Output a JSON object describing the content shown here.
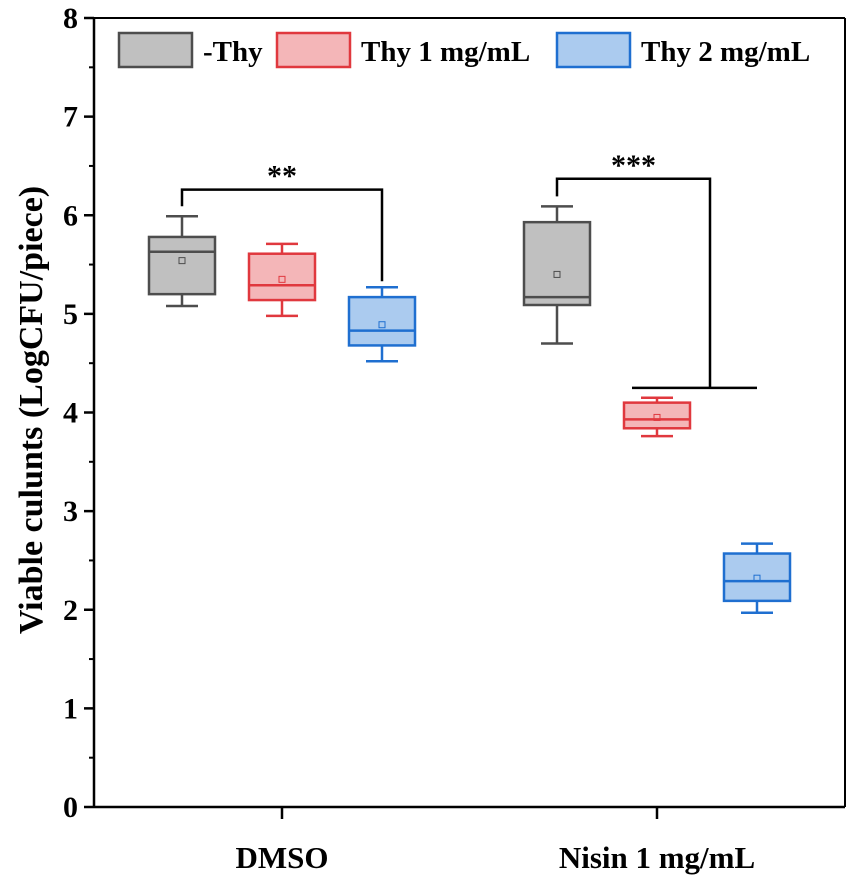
{
  "chart_data": {
    "type": "box",
    "title": "",
    "xlabel": "",
    "ylabel": "Viable culunts (LogCFU/piece)",
    "ylim": [
      0,
      8
    ],
    "yticks": [
      "0",
      "1",
      "2",
      "3",
      "4",
      "5",
      "6",
      "7",
      "8"
    ],
    "categories": [
      "DMSO",
      "Nisin 1 mg/mL"
    ],
    "series": [
      {
        "name": "-Thy",
        "fill": "#c0c0c0",
        "stroke": "#4d4d4d",
        "boxes": [
          {
            "min": 5.08,
            "q1": 5.2,
            "median": 5.63,
            "q3": 5.78,
            "max": 5.99,
            "mean": 5.54
          },
          {
            "min": 4.7,
            "q1": 5.09,
            "median": 5.17,
            "q3": 5.93,
            "max": 6.09,
            "mean": 5.4
          }
        ]
      },
      {
        "name": "Thy 1 mg/mL",
        "fill": "#f4b6b8",
        "stroke": "#e0383e",
        "boxes": [
          {
            "min": 4.98,
            "q1": 5.14,
            "median": 5.29,
            "q3": 5.61,
            "max": 5.71,
            "mean": 5.35
          },
          {
            "min": 3.76,
            "q1": 3.84,
            "median": 3.93,
            "q3": 4.1,
            "max": 4.15,
            "mean": 3.95
          }
        ]
      },
      {
        "name": "Thy 2 mg/mL",
        "fill": "#abcbef",
        "stroke": "#1f6fd0",
        "boxes": [
          {
            "min": 4.52,
            "q1": 4.68,
            "median": 4.83,
            "q3": 5.17,
            "max": 5.27,
            "mean": 4.89
          },
          {
            "min": 1.97,
            "q1": 2.09,
            "median": 2.29,
            "q3": 2.57,
            "max": 2.67,
            "mean": 2.32
          }
        ]
      }
    ],
    "annotations": [
      {
        "text": "**",
        "group": "DMSO",
        "from": "-Thy",
        "to": "Thy 2 mg/mL",
        "level": 6.26
      },
      {
        "text": "***",
        "group": "Nisin 1 mg/mL",
        "from": "-Thy",
        "to": "Thy 1 mg/mL & Thy 2 mg/mL",
        "level": 6.37,
        "lower_level": 4.25
      }
    ],
    "legend": {
      "position": "top",
      "entries": [
        "-Thy",
        "Thy 1 mg/mL",
        "Thy 2 mg/mL"
      ]
    }
  }
}
